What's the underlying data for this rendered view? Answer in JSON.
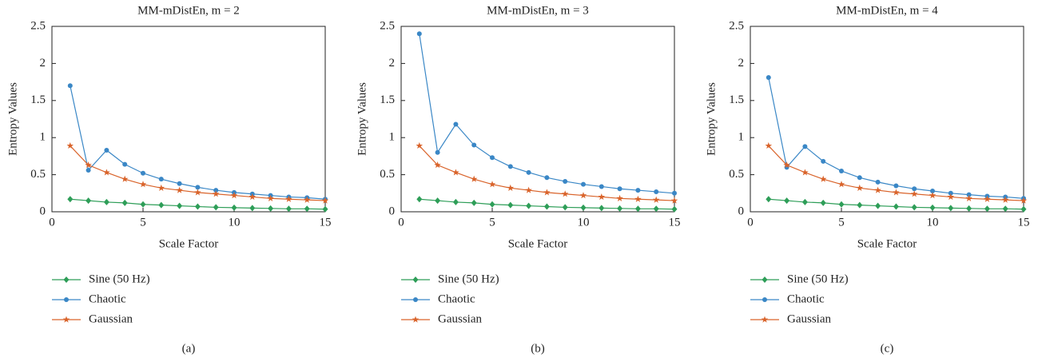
{
  "chart_data": [
    {
      "type": "line",
      "title": "MM-mDistEn, m = 2",
      "caption": "(a)",
      "x_label": "Scale Factor",
      "y_label": "Entropy Values",
      "x": [
        1,
        2,
        3,
        4,
        5,
        6,
        7,
        8,
        9,
        10,
        11,
        12,
        13,
        14,
        15
      ],
      "series": [
        {
          "name": "Sine (50 Hz)",
          "color": "#2e9e58",
          "marker": "diamond",
          "values": [
            0.17,
            0.15,
            0.13,
            0.12,
            0.1,
            0.09,
            0.08,
            0.07,
            0.06,
            0.055,
            0.05,
            0.045,
            0.04,
            0.04,
            0.035
          ]
        },
        {
          "name": "Chaotic",
          "color": "#3a87c6",
          "marker": "circle",
          "values": [
            1.7,
            0.56,
            0.83,
            0.64,
            0.52,
            0.44,
            0.38,
            0.33,
            0.29,
            0.26,
            0.24,
            0.22,
            0.2,
            0.19,
            0.17
          ]
        },
        {
          "name": "Gaussian",
          "color": "#d9632a",
          "marker": "star",
          "values": [
            0.89,
            0.63,
            0.53,
            0.44,
            0.37,
            0.32,
            0.29,
            0.26,
            0.24,
            0.22,
            0.2,
            0.18,
            0.17,
            0.16,
            0.15
          ]
        }
      ],
      "xlim": [
        0,
        15
      ],
      "xticks": [
        0,
        5,
        10,
        15
      ],
      "ylim": [
        0,
        2.5
      ],
      "yticks": [
        0,
        0.5,
        1,
        1.5,
        2,
        2.5
      ]
    },
    {
      "type": "line",
      "title": "MM-mDistEn, m = 3",
      "caption": "(b)",
      "x_label": "Scale Factor",
      "y_label": "Entropy Values",
      "x": [
        1,
        2,
        3,
        4,
        5,
        6,
        7,
        8,
        9,
        10,
        11,
        12,
        13,
        14,
        15
      ],
      "series": [
        {
          "name": "Sine (50 Hz)",
          "color": "#2e9e58",
          "marker": "diamond",
          "values": [
            0.17,
            0.15,
            0.13,
            0.12,
            0.1,
            0.09,
            0.08,
            0.07,
            0.06,
            0.055,
            0.05,
            0.045,
            0.04,
            0.04,
            0.035
          ]
        },
        {
          "name": "Chaotic",
          "color": "#3a87c6",
          "marker": "circle",
          "values": [
            2.4,
            0.8,
            1.18,
            0.9,
            0.73,
            0.61,
            0.53,
            0.46,
            0.41,
            0.37,
            0.34,
            0.31,
            0.29,
            0.27,
            0.25
          ]
        },
        {
          "name": "Gaussian",
          "color": "#d9632a",
          "marker": "star",
          "values": [
            0.89,
            0.63,
            0.53,
            0.44,
            0.37,
            0.32,
            0.29,
            0.26,
            0.24,
            0.22,
            0.2,
            0.18,
            0.17,
            0.16,
            0.15
          ]
        }
      ],
      "xlim": [
        0,
        15
      ],
      "xticks": [
        0,
        5,
        10,
        15
      ],
      "ylim": [
        0,
        2.5
      ],
      "yticks": [
        0,
        0.5,
        1,
        1.5,
        2,
        2.5
      ]
    },
    {
      "type": "line",
      "title": "MM-mDistEn, m = 4",
      "caption": "(c)",
      "x_label": "Scale Factor",
      "y_label": "Entropy Values",
      "x": [
        1,
        2,
        3,
        4,
        5,
        6,
        7,
        8,
        9,
        10,
        11,
        12,
        13,
        14,
        15
      ],
      "series": [
        {
          "name": "Sine (50 Hz)",
          "color": "#2e9e58",
          "marker": "diamond",
          "values": [
            0.17,
            0.15,
            0.13,
            0.12,
            0.1,
            0.09,
            0.08,
            0.07,
            0.06,
            0.055,
            0.05,
            0.045,
            0.04,
            0.04,
            0.035
          ]
        },
        {
          "name": "Chaotic",
          "color": "#3a87c6",
          "marker": "circle",
          "values": [
            1.81,
            0.6,
            0.88,
            0.68,
            0.55,
            0.46,
            0.4,
            0.35,
            0.31,
            0.28,
            0.25,
            0.23,
            0.21,
            0.2,
            0.18
          ]
        },
        {
          "name": "Gaussian",
          "color": "#d9632a",
          "marker": "star",
          "values": [
            0.89,
            0.63,
            0.53,
            0.44,
            0.37,
            0.32,
            0.29,
            0.26,
            0.24,
            0.22,
            0.2,
            0.18,
            0.17,
            0.16,
            0.15
          ]
        }
      ],
      "xlim": [
        0,
        15
      ],
      "xticks": [
        0,
        5,
        10,
        15
      ],
      "ylim": [
        0,
        2.5
      ],
      "yticks": [
        0,
        0.5,
        1,
        1.5,
        2,
        2.5
      ]
    }
  ]
}
